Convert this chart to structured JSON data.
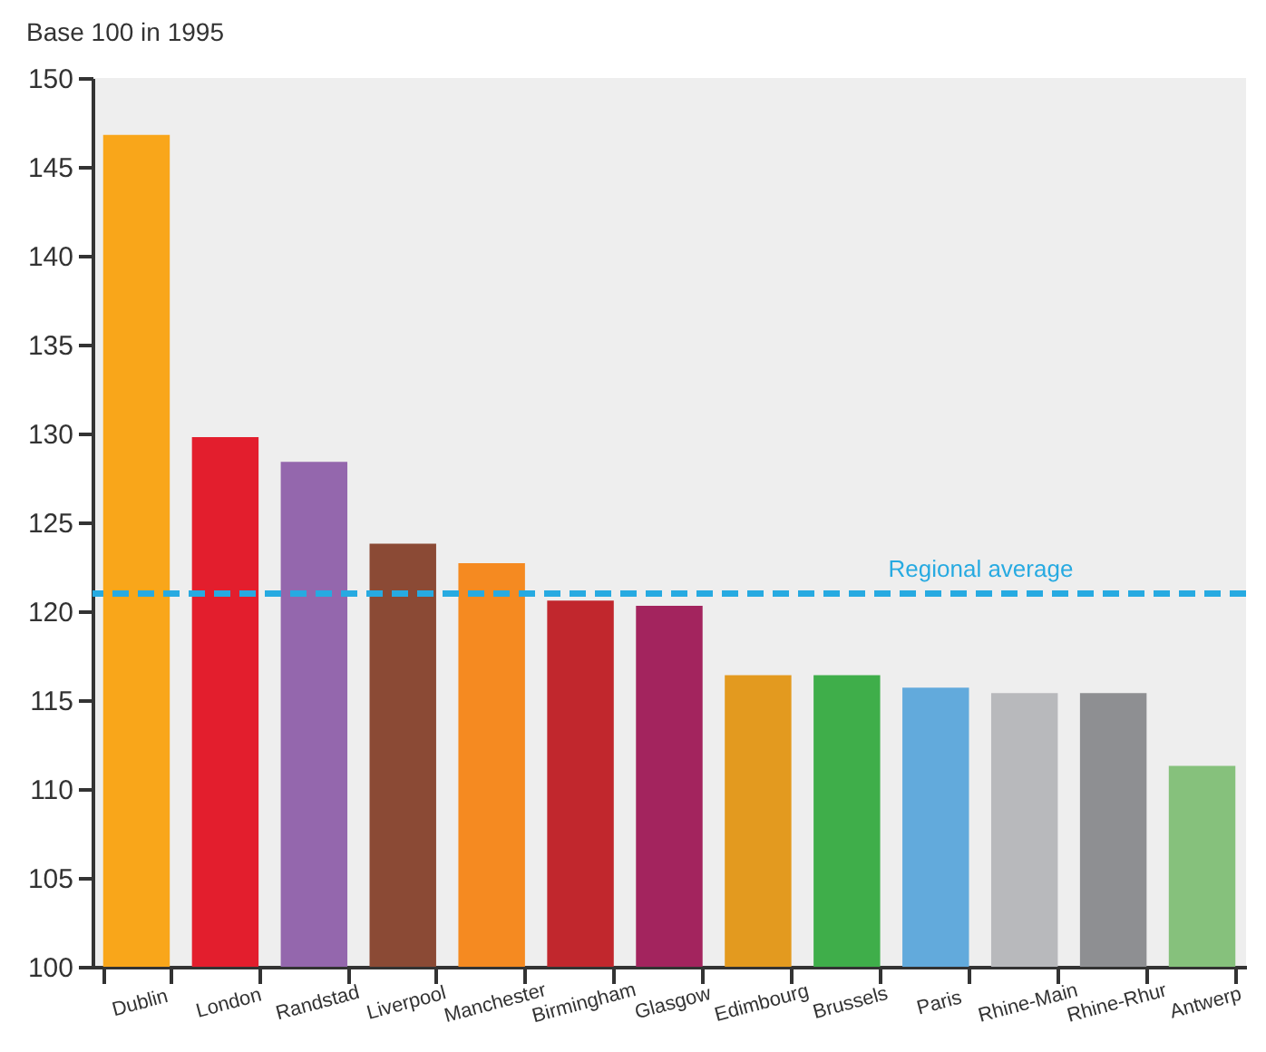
{
  "chart_data": {
    "type": "bar",
    "ylabel": "Base 100 in 1995",
    "categories": [
      "Dublin",
      "London",
      "Randstad",
      "Liverpool",
      "Manchester",
      "Birmingham",
      "Glasgow",
      "Edimbourg",
      "Brussels",
      "Paris",
      "Rhine-Main",
      "Rhine-Rhur",
      "Antwerp"
    ],
    "values": [
      146.8,
      129.8,
      128.4,
      123.8,
      122.7,
      120.6,
      120.3,
      116.4,
      116.4,
      115.7,
      115.4,
      115.4,
      111.3
    ],
    "colors": [
      "#f9a61a",
      "#e31e2d",
      "#9467ad",
      "#8b4a35",
      "#f58a21",
      "#c1272d",
      "#a3245e",
      "#e39a1f",
      "#3fae4a",
      "#62aadc",
      "#b8b9bc",
      "#8e8f92",
      "#86c17c"
    ],
    "ylim": [
      100,
      150
    ],
    "yticks": [
      100,
      105,
      110,
      115,
      120,
      125,
      130,
      135,
      140,
      145,
      150
    ],
    "ref_lines": [
      {
        "axis": "y",
        "value": 121,
        "label": "Regional average",
        "color": "#27aae1",
        "line_style": "dashed"
      }
    ]
  }
}
